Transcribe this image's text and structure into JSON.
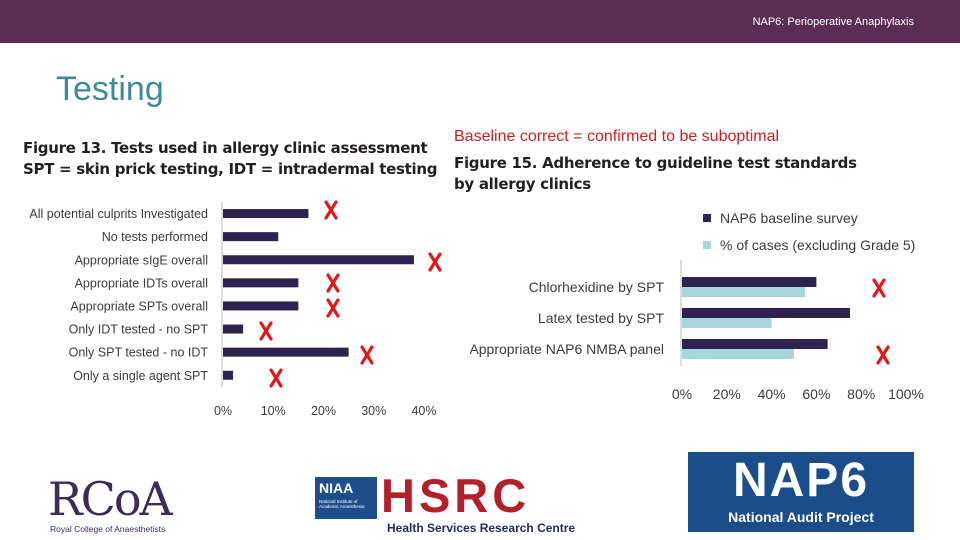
{
  "header": {
    "text": "NAP6: Perioperative Anaphylaxis"
  },
  "slide_title": "Testing",
  "caption": "Baseline correct = confirmed to be suboptimal",
  "figure13": {
    "title_lines": [
      "Figure 13. Tests used in allergy clinic assessment",
      "SPT = skin prick testing, IDT = intradermal testing"
    ]
  },
  "figure15": {
    "title_lines": [
      "Figure 15. Adherence to guideline test standards",
      "by allergy clinics"
    ]
  },
  "chart_data": [
    {
      "type": "bar",
      "orientation": "horizontal",
      "categories": [
        "All potential culprits Investigated",
        "No tests performed",
        "Appropriate sIgE overall",
        "Appropriate IDTs overall",
        "Appropriate SPTs overall",
        "Only IDT tested - no SPT",
        "Only SPT tested - no IDT",
        "Only a single agent SPT"
      ],
      "series": [
        {
          "values": [
            17,
            11,
            38,
            15,
            15,
            4,
            25,
            2
          ]
        }
      ],
      "xlim": [
        0,
        40
      ],
      "xticks": [
        "0%",
        "10%",
        "20%",
        "30%",
        "40%"
      ],
      "grid": false,
      "colors": [
        "#2e2250"
      ],
      "annotations": {
        "marks": [
          "x-mark",
          "x-mark",
          "x-mark",
          "x-mark",
          "x-mark",
          "x-mark",
          "x-mark"
        ],
        "color": "#e0181b"
      }
    },
    {
      "type": "bar",
      "orientation": "horizontal",
      "categories": [
        "Chlorhexidine by SPT",
        "Latex tested by SPT",
        "Appropriate NAP6 NMBA panel"
      ],
      "series": [
        {
          "name": "NAP6 baseline survey",
          "values": [
            60,
            75,
            65
          ],
          "color": "#2e2250"
        },
        {
          "name": "% of cases (excluding Grade 5)",
          "values": [
            55,
            40,
            50
          ],
          "color": "#a9d5dd"
        }
      ],
      "xlim": [
        0,
        100
      ],
      "xticks": [
        "0%",
        "20%",
        "40%",
        "60%",
        "80%",
        "100%"
      ],
      "legend": "top-left",
      "grid": false,
      "annotations": {
        "marks": [
          "x-mark",
          "x-mark"
        ],
        "color": "#e0181b"
      }
    }
  ],
  "logos": {
    "rcoa": {
      "letters": "RCoA",
      "sub": "Royal College of Anaesthetists"
    },
    "hsrc": {
      "niaa": "NIAA",
      "niaa_small": "National Institute of Academic Anaesthesia",
      "letters": "HSRC",
      "sub": "Health Services Research Centre"
    },
    "nap6": {
      "title": "NAP6",
      "sub": "National Audit Project"
    }
  }
}
